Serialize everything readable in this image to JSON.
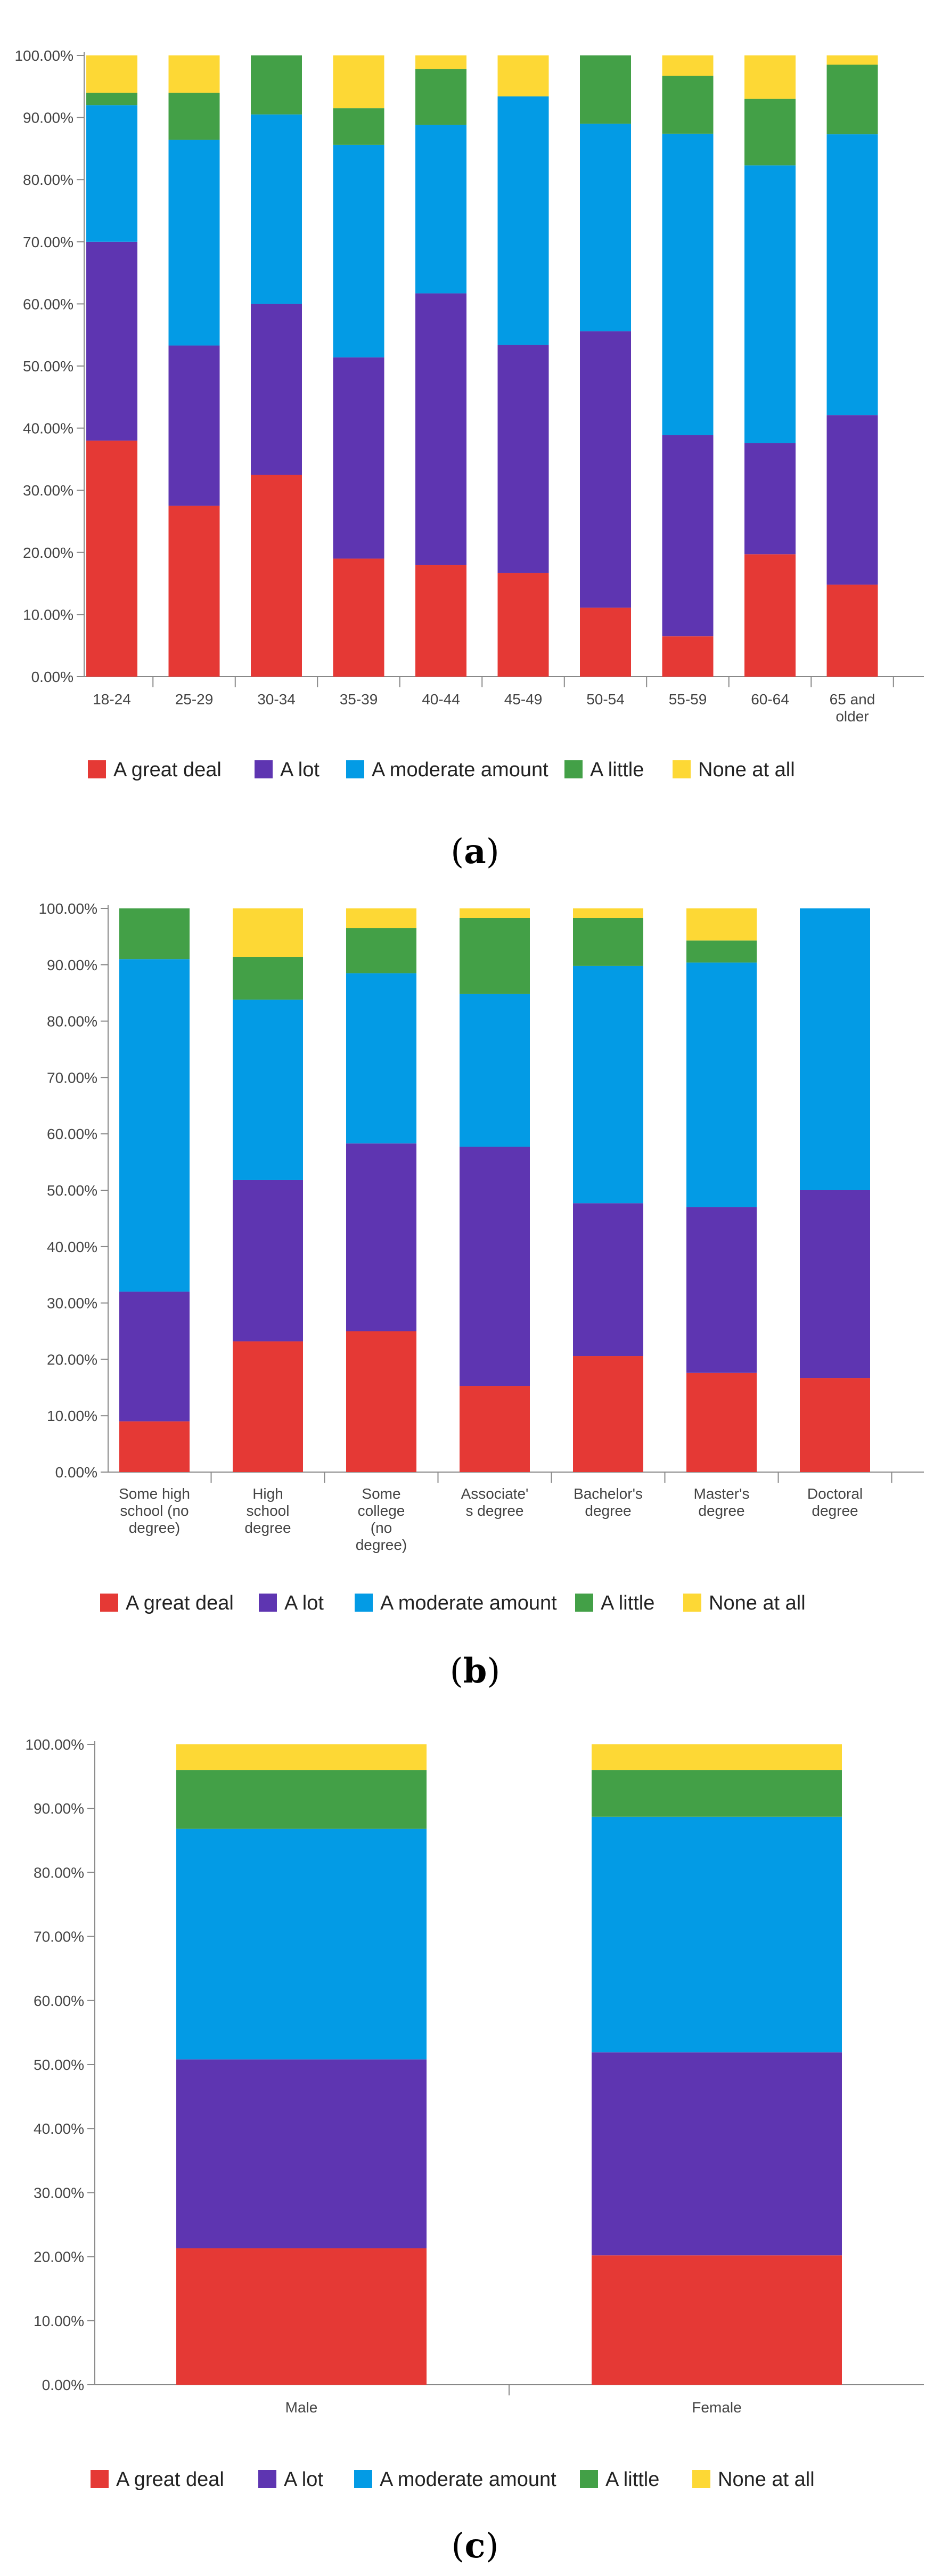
{
  "colors": {
    "A great deal": "#e53935",
    "A lot": "#5e35b1",
    "A moderate amount": "#039be5",
    "A little": "#43a047",
    "None at all": "#fdd835"
  },
  "chart_data": [
    {
      "type": "bar",
      "stacked": true,
      "panel_label": "a",
      "title": "",
      "xlabel": "",
      "ylabel": "",
      "ylim": [
        0,
        100
      ],
      "y_ticks": [
        "0.00%",
        "10.00%",
        "20.00%",
        "30.00%",
        "40.00%",
        "50.00%",
        "60.00%",
        "70.00%",
        "80.00%",
        "90.00%",
        "100.00%"
      ],
      "categories": [
        [
          "18-24"
        ],
        [
          "25-29"
        ],
        [
          "30-34"
        ],
        [
          "35-39"
        ],
        [
          "40-44"
        ],
        [
          "45-49"
        ],
        [
          "50-54"
        ],
        [
          "55-59"
        ],
        [
          "60-64"
        ],
        [
          "65 and",
          "older"
        ]
      ],
      "series": [
        {
          "name": "A great deal",
          "values": [
            38,
            27.5,
            32.5,
            19,
            18,
            16.7,
            11.1,
            6.5,
            19.7,
            14.8
          ]
        },
        {
          "name": "A lot",
          "values": [
            32,
            25.8,
            27.5,
            32.4,
            43.7,
            36.7,
            44.5,
            32.4,
            17.9,
            27.3
          ]
        },
        {
          "name": "A moderate amount",
          "values": [
            22,
            33.1,
            30.5,
            34.2,
            27.1,
            40,
            33.4,
            48.5,
            44.7,
            45.2
          ]
        },
        {
          "name": "A little",
          "values": [
            2,
            7.6,
            9.5,
            5.9,
            9,
            0,
            11,
            9.3,
            10.7,
            11.2
          ]
        },
        {
          "name": "None at all",
          "values": [
            6,
            6,
            0,
            8.5,
            2.2,
            6.6,
            0,
            3.3,
            7,
            1.5
          ]
        }
      ],
      "legend": [
        "A great deal",
        "A lot",
        "A moderate amount",
        "A little",
        "None at all"
      ]
    },
    {
      "type": "bar",
      "stacked": true,
      "panel_label": "b",
      "title": "",
      "xlabel": "",
      "ylabel": "",
      "ylim": [
        0,
        100
      ],
      "y_ticks": [
        "0.00%",
        "10.00%",
        "20.00%",
        "30.00%",
        "40.00%",
        "50.00%",
        "60.00%",
        "70.00%",
        "80.00%",
        "90.00%",
        "100.00%"
      ],
      "categories": [
        [
          "Some high",
          "school (no",
          "degree)"
        ],
        [
          "High",
          "school",
          "degree"
        ],
        [
          "Some",
          "college",
          "(no",
          "degree)"
        ],
        [
          "Associate'",
          "s degree"
        ],
        [
          "Bachelor's",
          "degree"
        ],
        [
          "Master's",
          "degree"
        ],
        [
          "Doctoral",
          "degree"
        ]
      ],
      "series": [
        {
          "name": "A great deal",
          "values": [
            9,
            23.2,
            25,
            15.3,
            20.6,
            17.6,
            16.7
          ]
        },
        {
          "name": "A lot",
          "values": [
            23,
            28.6,
            33.3,
            42.4,
            27.1,
            29.4,
            33.3
          ]
        },
        {
          "name": "A moderate amount",
          "values": [
            59,
            32,
            30.2,
            27.1,
            42.1,
            43.4,
            50
          ]
        },
        {
          "name": "A little",
          "values": [
            9,
            7.6,
            8,
            13.5,
            8.5,
            3.9,
            0
          ]
        },
        {
          "name": "None at all",
          "values": [
            0,
            8.6,
            3.5,
            1.7,
            1.7,
            5.7,
            0
          ]
        }
      ],
      "legend": [
        "A great deal",
        "A lot",
        "A moderate amount",
        "A little",
        "None at all"
      ]
    },
    {
      "type": "bar",
      "stacked": true,
      "panel_label": "c",
      "title": "",
      "xlabel": "",
      "ylabel": "",
      "ylim": [
        0,
        100
      ],
      "y_ticks": [
        "0.00%",
        "10.00%",
        "20.00%",
        "30.00%",
        "40.00%",
        "50.00%",
        "60.00%",
        "70.00%",
        "80.00%",
        "90.00%",
        "100.00%"
      ],
      "categories": [
        [
          "Male"
        ],
        [
          "Female"
        ]
      ],
      "series": [
        {
          "name": "A great deal",
          "values": [
            21.3,
            20.2
          ]
        },
        {
          "name": "A lot",
          "values": [
            29.5,
            31.7
          ]
        },
        {
          "name": "A moderate amount",
          "values": [
            36,
            36.8
          ]
        },
        {
          "name": "A little",
          "values": [
            9.2,
            7.3
          ]
        },
        {
          "name": "None at all",
          "values": [
            4,
            4
          ]
        }
      ],
      "legend": [
        "A great deal",
        "A lot",
        "A moderate amount",
        "A little",
        "None at all"
      ]
    }
  ]
}
